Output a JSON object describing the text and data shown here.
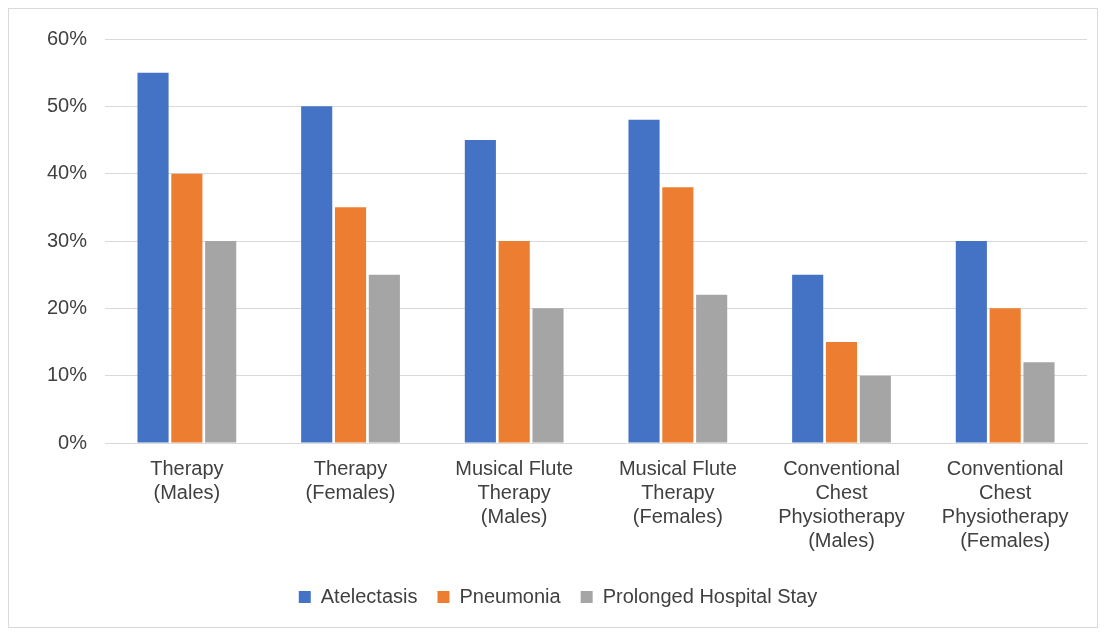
{
  "chart_data": {
    "type": "bar",
    "categories": [
      "Therapy (Males)",
      "Therapy (Females)",
      "Musical Flute Therapy (Males)",
      "Musical Flute Therapy (Females)",
      "Conventional Chest Physiotherapy (Males)",
      "Conventional Chest Physiotherapy (Females)"
    ],
    "series": [
      {
        "name": "Atelectasis",
        "color": "#4472c4",
        "values": [
          55,
          50,
          45,
          48,
          25,
          30
        ]
      },
      {
        "name": "Pneumonia",
        "color": "#ed7d31",
        "values": [
          40,
          35,
          30,
          38,
          15,
          20
        ]
      },
      {
        "name": "Prolonged Hospital Stay",
        "color": "#a5a5a5",
        "values": [
          30,
          25,
          20,
          22,
          10,
          12
        ]
      }
    ],
    "ylim": [
      0,
      60
    ],
    "yticks": [
      {
        "value": 0,
        "label": "0%"
      },
      {
        "value": 10,
        "label": "10%"
      },
      {
        "value": 20,
        "label": "20%"
      },
      {
        "value": 30,
        "label": "30%"
      },
      {
        "value": 40,
        "label": "40%"
      },
      {
        "value": 50,
        "label": "50%"
      },
      {
        "value": 60,
        "label": "60%"
      }
    ],
    "grid": "y",
    "legend": "bottom"
  }
}
